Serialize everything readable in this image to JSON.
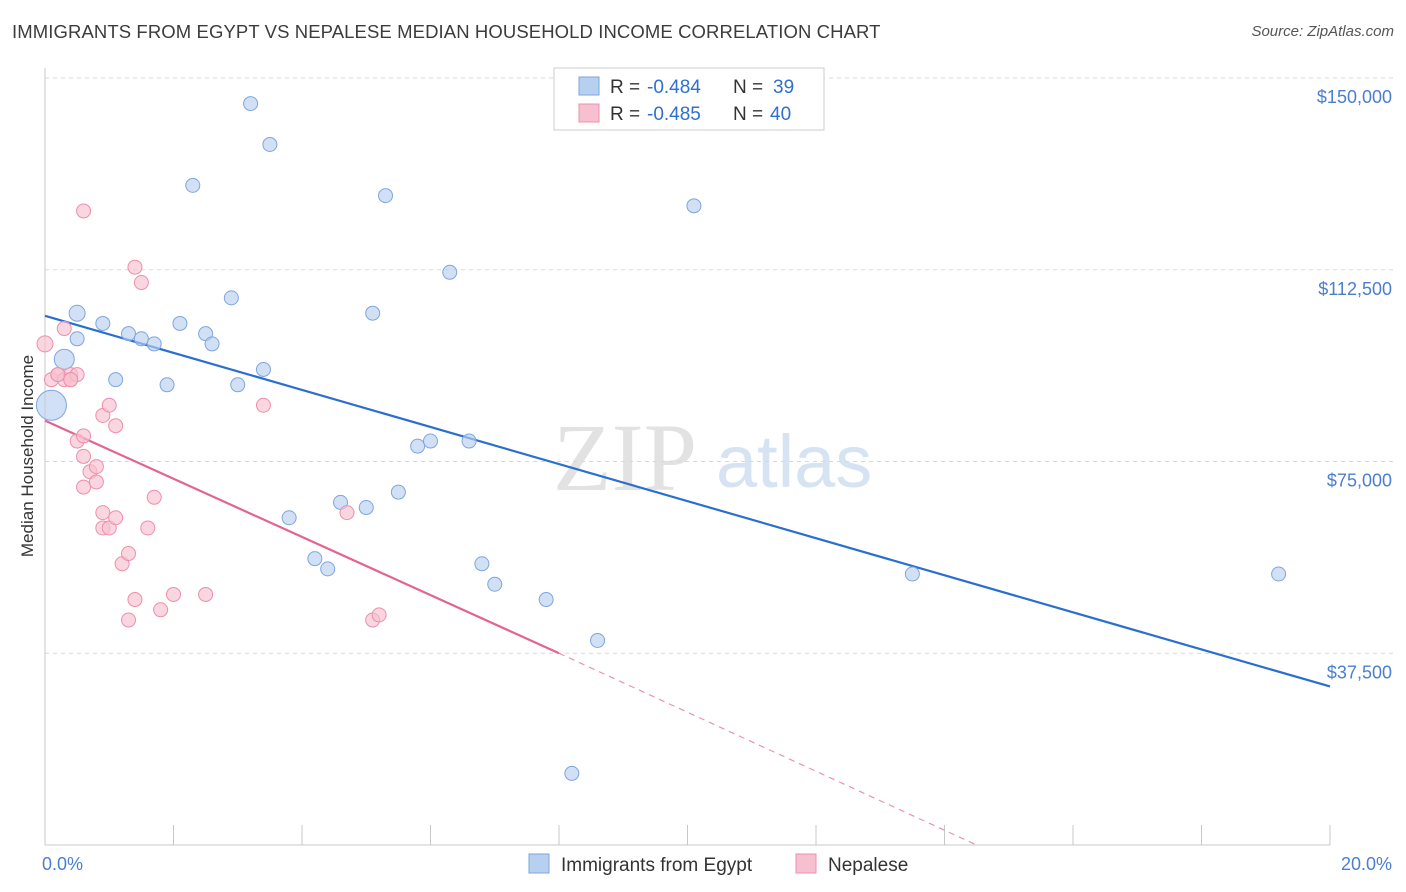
{
  "title": "IMMIGRANTS FROM EGYPT VS NEPALESE MEDIAN HOUSEHOLD INCOME CORRELATION CHART",
  "source": "Source: ZipAtlas.com",
  "watermark": {
    "zip": "ZIP",
    "atlas": "atlas"
  },
  "legend_top": [
    {
      "r_label": "R = ",
      "r_value": "-0.484",
      "n_label": "N = ",
      "n_value": "39"
    },
    {
      "r_label": "R = ",
      "r_value": "-0.485",
      "n_label": "N = ",
      "n_value": "40"
    }
  ],
  "colors": {
    "egypt_fill": "#b8d0f0",
    "egypt_stroke": "#7ea6dd",
    "egypt_line": "#2a6fcf",
    "nepal_fill": "#f7c0d0",
    "nepal_stroke": "#ec8fab",
    "nepal_line": "#e3658e",
    "tick_text": "#4a7fd0",
    "grid": "#d8d8d8"
  },
  "chart_data": {
    "type": "scatter",
    "title": "IMMIGRANTS FROM EGYPT VS NEPALESE MEDIAN HOUSEHOLD INCOME CORRELATION CHART",
    "xlabel": "",
    "ylabel": "Median Household Income",
    "xlim": [
      0,
      20
    ],
    "ylim": [
      0,
      155000
    ],
    "x_tick_labels": [
      "0.0%",
      "20.0%"
    ],
    "y_ticks": [
      37500,
      75000,
      112500,
      150000
    ],
    "y_tick_labels": [
      "$37,500",
      "$75,000",
      "$112,500",
      "$150,000"
    ],
    "grid": "horizontal dashed",
    "legend_position": "bottom-center",
    "series": [
      {
        "name": "Immigrants from Egypt",
        "points": [
          [
            0.1,
            86000,
            30
          ],
          [
            0.3,
            95000,
            20
          ],
          [
            0.5,
            104000,
            16
          ],
          [
            0.5,
            99000,
            14
          ],
          [
            0.9,
            102000,
            14
          ],
          [
            1.1,
            91000,
            14
          ],
          [
            1.3,
            100000,
            14
          ],
          [
            1.5,
            99000,
            14
          ],
          [
            1.7,
            98000,
            14
          ],
          [
            1.9,
            90000,
            14
          ],
          [
            2.1,
            102000,
            14
          ],
          [
            2.3,
            129000,
            14
          ],
          [
            2.5,
            100000,
            14
          ],
          [
            2.6,
            98000,
            14
          ],
          [
            2.9,
            107000,
            14
          ],
          [
            3.0,
            90000,
            14
          ],
          [
            3.2,
            145000,
            14
          ],
          [
            3.4,
            93000,
            14
          ],
          [
            3.5,
            137000,
            14
          ],
          [
            3.8,
            64000,
            14
          ],
          [
            4.2,
            56000,
            14
          ],
          [
            4.4,
            54000,
            14
          ],
          [
            4.6,
            67000,
            14
          ],
          [
            5.0,
            66000,
            14
          ],
          [
            5.1,
            104000,
            14
          ],
          [
            5.3,
            127000,
            14
          ],
          [
            5.5,
            69000,
            14
          ],
          [
            5.8,
            78000,
            14
          ],
          [
            6.0,
            79000,
            14
          ],
          [
            6.3,
            112000,
            14
          ],
          [
            6.6,
            79000,
            14
          ],
          [
            6.8,
            55000,
            14
          ],
          [
            7.0,
            51000,
            14
          ],
          [
            7.8,
            48000,
            14
          ],
          [
            8.2,
            14000,
            14
          ],
          [
            8.6,
            40000,
            14
          ],
          [
            10.1,
            125000,
            14
          ],
          [
            13.5,
            53000,
            14
          ],
          [
            19.2,
            53000,
            14
          ]
        ],
        "trend": {
          "x": [
            0,
            20
          ],
          "y": [
            103500,
            31000
          ]
        }
      },
      {
        "name": "Nepalese",
        "points": [
          [
            0.0,
            98000,
            16
          ],
          [
            0.1,
            91000,
            14
          ],
          [
            0.2,
            92000,
            14
          ],
          [
            0.3,
            101000,
            14
          ],
          [
            0.3,
            91000,
            14
          ],
          [
            0.4,
            92000,
            14
          ],
          [
            0.4,
            91000,
            14
          ],
          [
            0.5,
            79000,
            14
          ],
          [
            0.5,
            92000,
            14
          ],
          [
            0.6,
            80000,
            14
          ],
          [
            0.6,
            76000,
            14
          ],
          [
            0.6,
            70000,
            14
          ],
          [
            0.7,
            73000,
            14
          ],
          [
            0.8,
            71000,
            14
          ],
          [
            0.8,
            74000,
            14
          ],
          [
            0.9,
            84000,
            14
          ],
          [
            0.9,
            65000,
            14
          ],
          [
            0.9,
            62000,
            14
          ],
          [
            1.0,
            86000,
            14
          ],
          [
            1.0,
            62000,
            14
          ],
          [
            1.1,
            82000,
            14
          ],
          [
            1.1,
            64000,
            14
          ],
          [
            1.2,
            55000,
            14
          ],
          [
            1.3,
            57000,
            14
          ],
          [
            1.3,
            44000,
            14
          ],
          [
            1.4,
            113000,
            14
          ],
          [
            1.4,
            48000,
            14
          ],
          [
            1.5,
            110000,
            14
          ],
          [
            1.6,
            62000,
            14
          ],
          [
            1.7,
            68000,
            14
          ],
          [
            1.8,
            46000,
            14
          ],
          [
            2.0,
            49000,
            14
          ],
          [
            2.5,
            49000,
            14
          ],
          [
            3.4,
            86000,
            14
          ],
          [
            4.7,
            65000,
            14
          ],
          [
            5.1,
            44000,
            14
          ],
          [
            5.2,
            45000,
            14
          ],
          [
            0.6,
            124000,
            14
          ],
          [
            0.2,
            92000,
            14
          ],
          [
            0.4,
            91000,
            14
          ]
        ],
        "trend": {
          "x": [
            0,
            8.0
          ],
          "y": [
            83000,
            37500
          ]
        },
        "trend_extension": {
          "x": [
            8.0,
            14.5
          ],
          "y": [
            37500,
            0
          ]
        }
      }
    ]
  },
  "legend_bottom": [
    "Immigrants from Egypt",
    "Nepalese"
  ]
}
